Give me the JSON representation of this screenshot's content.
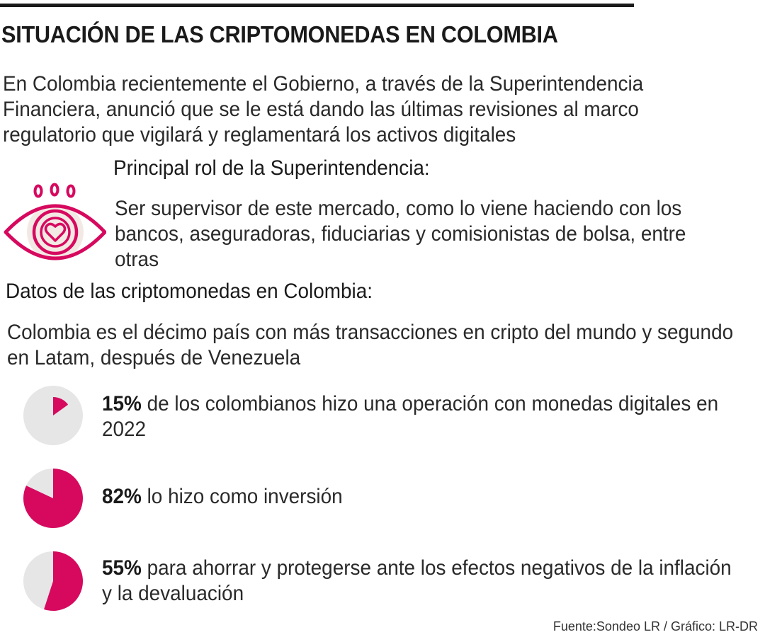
{
  "title": "SITUACIÓN DE LAS CRIPTOMONEDAS EN COLOMBIA",
  "intro": "En Colombia recientemente el Gobierno, a través de la Superintendencia Financiera, anunció que se le está dando las últimas revisiones al marco regulatorio que vigilará y reglamentará los activos digitales",
  "role": {
    "heading": "Principal rol de la Superintendencia:",
    "text": "Ser supervisor de este mercado, como lo viene haciendo con los bancos, aseguradoras, fiduciarias y comisionistas de bolsa, entre otras",
    "icon": "eye-heart-icon"
  },
  "data_section": {
    "heading": "Datos de las criptomonedas en Colombia:",
    "intro": "Colombia es el décimo país con más transacciones en cripto del mundo y segundo en Latam, después de Venezuela"
  },
  "colors": {
    "accent": "#d6095f",
    "pie_background": "#e6e6e6",
    "icon_bg": "#f3e9e4",
    "text": "#1a1a1a"
  },
  "chart_data": [
    {
      "type": "pie",
      "values": [
        15,
        85
      ],
      "percent_label": "15%",
      "text": "de los colombianos hizo una operación con monedas digitales en 2022"
    },
    {
      "type": "pie",
      "values": [
        82,
        18
      ],
      "percent_label": "82%",
      "text": "lo hizo como inversión"
    },
    {
      "type": "pie",
      "values": [
        55,
        45
      ],
      "percent_label": "55%",
      "text": "para ahorrar y protegerse ante los efectos negativos de la inflación y la devaluación"
    }
  ],
  "source": "Fuente:Sondeo LR / Gráfico: LR-DR"
}
